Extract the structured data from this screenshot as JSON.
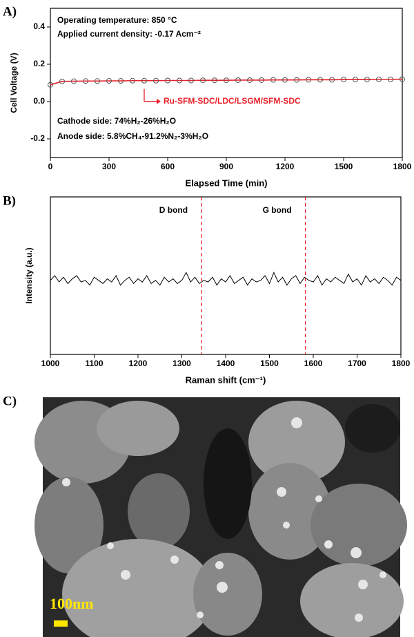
{
  "panel_labels": [
    "A)",
    "B)",
    "C)"
  ],
  "chart_data": [
    {
      "type": "line",
      "x_label": "Elapsed Time (min)",
      "y_label": "Cell Voltage (V)",
      "x": [
        0,
        60,
        120,
        180,
        240,
        300,
        360,
        420,
        480,
        540,
        600,
        660,
        720,
        780,
        840,
        900,
        960,
        1020,
        1080,
        1140,
        1200,
        1260,
        1320,
        1380,
        1440,
        1500,
        1560,
        1620,
        1680,
        1740,
        1800
      ],
      "series": [
        {
          "name": "Ru-SFM-SDC/LDC/LSGM/SFM-SDC",
          "color": "#e8202a",
          "marker": "open-circle",
          "values": [
            0.09,
            0.108,
            0.109,
            0.11,
            0.11,
            0.111,
            0.111,
            0.112,
            0.112,
            0.112,
            0.113,
            0.113,
            0.113,
            0.114,
            0.114,
            0.114,
            0.115,
            0.115,
            0.115,
            0.116,
            0.116,
            0.116,
            0.117,
            0.117,
            0.117,
            0.118,
            0.118,
            0.118,
            0.119,
            0.119,
            0.12
          ]
        }
      ],
      "xlim": [
        0,
        1800
      ],
      "xticks": [
        0,
        300,
        600,
        900,
        1200,
        1500,
        1800
      ],
      "ylim": [
        -0.3,
        0.5
      ],
      "yticks": [
        -0.2,
        {
          "value": 0,
          "label": "0.0"
        },
        0.2,
        0.4
      ],
      "notes": [
        "Operating temperature: 850 °C",
        "Applied current density: -0.17 Acm⁻²",
        "Cathode side: 74%H₂-26%H₂O",
        "Anode side: 5.8%CH₄-91.2%N₂-3%H₂O"
      ]
    },
    {
      "type": "line",
      "x_label": "Raman shift (cm⁻¹)",
      "y_label": "Intensity (a.u.)",
      "x": [
        1000,
        1010,
        1020,
        1030,
        1040,
        1050,
        1060,
        1070,
        1080,
        1090,
        1100,
        1110,
        1120,
        1130,
        1140,
        1150,
        1160,
        1170,
        1180,
        1190,
        1200,
        1210,
        1220,
        1230,
        1240,
        1250,
        1260,
        1270,
        1280,
        1290,
        1300,
        1310,
        1320,
        1330,
        1340,
        1350,
        1360,
        1370,
        1380,
        1390,
        1400,
        1410,
        1420,
        1430,
        1440,
        1450,
        1460,
        1470,
        1480,
        1490,
        1500,
        1510,
        1520,
        1530,
        1540,
        1550,
        1560,
        1570,
        1580,
        1590,
        1600,
        1610,
        1620,
        1630,
        1640,
        1650,
        1660,
        1670,
        1680,
        1690,
        1700,
        1710,
        1720,
        1730,
        1740,
        1750,
        1760,
        1770,
        1780,
        1790,
        1800
      ],
      "series": [
        {
          "color": "#000000",
          "values": [
            0.47,
            0.5,
            0.46,
            0.49,
            0.45,
            0.48,
            0.5,
            0.46,
            0.47,
            0.44,
            0.49,
            0.47,
            0.45,
            0.48,
            0.46,
            0.5,
            0.44,
            0.47,
            0.49,
            0.45,
            0.48,
            0.46,
            0.5,
            0.45,
            0.47,
            0.44,
            0.49,
            0.46,
            0.48,
            0.45,
            0.47,
            0.52,
            0.46,
            0.49,
            0.45,
            0.47,
            0.46,
            0.49,
            0.44,
            0.48,
            0.46,
            0.5,
            0.45,
            0.47,
            0.49,
            0.44,
            0.48,
            0.46,
            0.47,
            0.5,
            0.45,
            0.52,
            0.46,
            0.49,
            0.44,
            0.48,
            0.5,
            0.45,
            0.49,
            0.47,
            0.46,
            0.5,
            0.44,
            0.48,
            0.46,
            0.49,
            0.47,
            0.45,
            0.51,
            0.46,
            0.48,
            0.44,
            0.5,
            0.46,
            0.48,
            0.45,
            0.49,
            0.47,
            0.44,
            0.49,
            0.47
          ]
        }
      ],
      "xlim": [
        1000,
        1800
      ],
      "xticks": [
        1000,
        1100,
        1200,
        1300,
        1400,
        1500,
        1600,
        1700,
        1800
      ],
      "ylim": [
        0,
        1
      ],
      "vlines": [
        {
          "x": 1345,
          "label": "D bond"
        },
        {
          "x": 1582,
          "label": "G bond"
        }
      ]
    }
  ],
  "image": {
    "scale_bar": "100nm"
  }
}
